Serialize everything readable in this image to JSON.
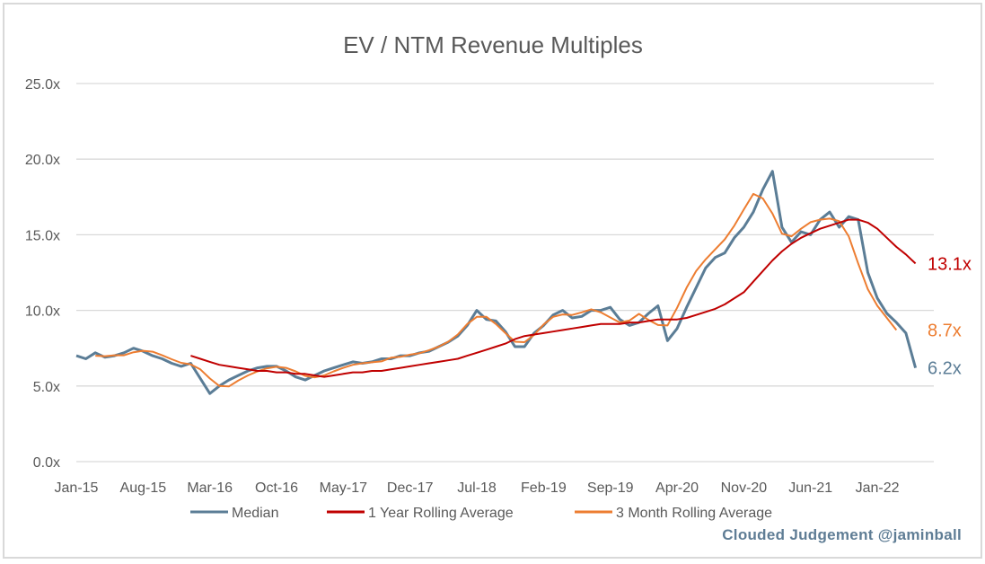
{
  "chart_data": {
    "type": "line",
    "title": "EV / NTM Revenue Multiples",
    "xlabel": "",
    "ylabel": "",
    "ylim": [
      0,
      25
    ],
    "y_ticks": [
      0,
      5,
      10,
      15,
      20,
      25
    ],
    "y_tick_labels": [
      "0.0x",
      "5.0x",
      "10.0x",
      "15.0x",
      "20.0x",
      "25.0x"
    ],
    "x_start": "Jan-15",
    "x_tick_labels": [
      "Jan-15",
      "Aug-15",
      "Mar-16",
      "Oct-16",
      "May-17",
      "Dec-17",
      "Jul-18",
      "Feb-19",
      "Sep-19",
      "Apr-20",
      "Nov-20",
      "Jun-21",
      "Jan-22"
    ],
    "x_tick_interval_months": 7,
    "grid": true,
    "legend_position": "bottom",
    "series": [
      {
        "name": "Median",
        "color": "#5b7d96",
        "end_label": "6.2x",
        "start_month": 0,
        "values": [
          7.0,
          6.8,
          7.2,
          6.9,
          7.0,
          7.2,
          7.5,
          7.3,
          7.0,
          6.8,
          6.5,
          6.3,
          6.5,
          5.5,
          4.5,
          5.0,
          5.4,
          5.7,
          6.0,
          6.2,
          6.3,
          6.3,
          6.0,
          5.6,
          5.4,
          5.7,
          6.0,
          6.2,
          6.4,
          6.6,
          6.5,
          6.6,
          6.8,
          6.8,
          7.0,
          7.0,
          7.2,
          7.3,
          7.6,
          7.9,
          8.3,
          9.0,
          10.0,
          9.4,
          9.3,
          8.6,
          7.6,
          7.6,
          8.5,
          9.0,
          9.7,
          10.0,
          9.5,
          9.6,
          10.0,
          10.0,
          10.2,
          9.4,
          9.0,
          9.2,
          9.8,
          10.3,
          8.0,
          8.8,
          10.2,
          11.5,
          12.8,
          13.5,
          13.8,
          14.8,
          15.5,
          16.5,
          18.0,
          19.2,
          15.5,
          14.5,
          15.2,
          15.0,
          16.0,
          16.5,
          15.5,
          16.2,
          16.0,
          12.5,
          10.8,
          9.8,
          9.2,
          8.5,
          6.2
        ]
      },
      {
        "name": "1 Year Rolling Average",
        "color": "#c00000",
        "end_label": "13.1x",
        "start_month": 12,
        "values": [
          7.0,
          6.8,
          6.6,
          6.4,
          6.3,
          6.2,
          6.1,
          6.0,
          6.0,
          5.9,
          5.9,
          5.8,
          5.8,
          5.7,
          5.6,
          5.7,
          5.8,
          5.9,
          5.9,
          6.0,
          6.0,
          6.1,
          6.2,
          6.3,
          6.4,
          6.5,
          6.6,
          6.7,
          6.8,
          7.0,
          7.2,
          7.4,
          7.6,
          7.8,
          8.1,
          8.3,
          8.4,
          8.5,
          8.6,
          8.7,
          8.8,
          8.9,
          9.0,
          9.1,
          9.1,
          9.1,
          9.2,
          9.2,
          9.3,
          9.4,
          9.4,
          9.4,
          9.5,
          9.7,
          9.9,
          10.1,
          10.4,
          10.8,
          11.2,
          11.9,
          12.6,
          13.3,
          13.9,
          14.4,
          14.8,
          15.1,
          15.4,
          15.6,
          15.8,
          16.0,
          16.0,
          15.8,
          15.4,
          14.8,
          14.2,
          13.7,
          13.1
        ]
      },
      {
        "name": "3 Month Rolling Average",
        "color": "#ed7d31",
        "end_label": "8.7x",
        "start_month": 2,
        "values": [
          7.0,
          6.97,
          7.03,
          7.03,
          7.23,
          7.33,
          7.27,
          7.03,
          6.77,
          6.53,
          6.43,
          6.1,
          5.5,
          5.0,
          4.97,
          5.37,
          5.7,
          5.97,
          6.17,
          6.27,
          6.2,
          5.97,
          5.67,
          5.57,
          5.7,
          5.97,
          6.2,
          6.4,
          6.5,
          6.57,
          6.63,
          6.87,
          6.93,
          7.07,
          7.17,
          7.37,
          7.6,
          7.93,
          8.4,
          9.1,
          9.57,
          9.57,
          9.1,
          8.5,
          7.93,
          7.9,
          8.37,
          9.07,
          9.57,
          9.73,
          9.7,
          9.87,
          10.07,
          9.87,
          9.53,
          9.2,
          9.33,
          9.77,
          9.37,
          9.03,
          9.0,
          10.17,
          11.5,
          12.6,
          13.37,
          14.03,
          14.7,
          15.6,
          16.67,
          17.7,
          17.4,
          16.4,
          15.07,
          14.9,
          15.4,
          15.83,
          16.0,
          16.07,
          15.9,
          14.9,
          13.1,
          11.4,
          10.3,
          9.5,
          8.7
        ]
      }
    ]
  },
  "watermark": "Clouded Judgement @jaminball"
}
